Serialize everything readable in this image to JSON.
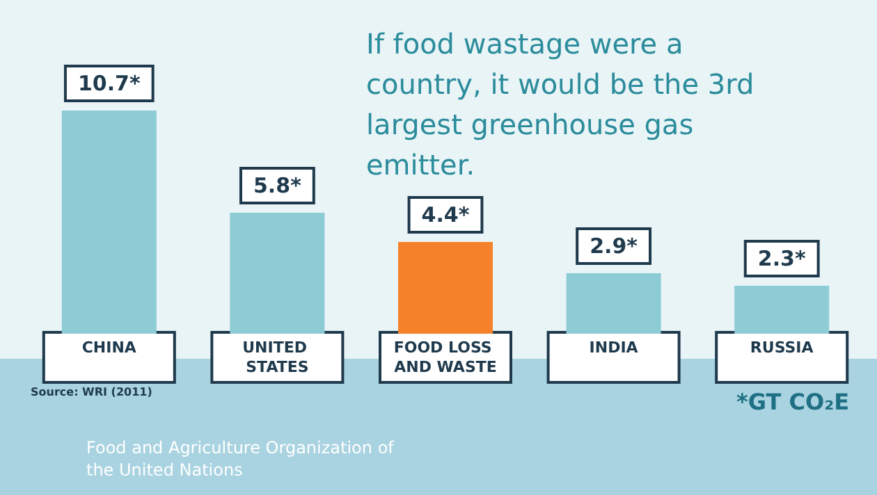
{
  "chart_data": {
    "type": "bar",
    "title": "If food wastage were a country, it would be the 3rd largest greenhouse gas emitter.",
    "categories": [
      "CHINA",
      "UNITED STATES",
      "FOOD LOSS AND WASTE",
      "INDIA",
      "RUSSIA"
    ],
    "values": [
      10.7,
      5.8,
      4.4,
      2.9,
      2.3
    ],
    "value_labels": [
      "10.7*",
      "5.8*",
      "4.4*",
      "2.9*",
      "2.3*"
    ],
    "colors": [
      "#8dcbd5",
      "#8dcbd5",
      "#f5822a",
      "#8dcbd5",
      "#8dcbd5"
    ],
    "annotations": [
      "Source: WRI (2011)",
      "*GT CO₂E",
      "Food and Agriculture Organization of the United Nations"
    ]
  }
}
